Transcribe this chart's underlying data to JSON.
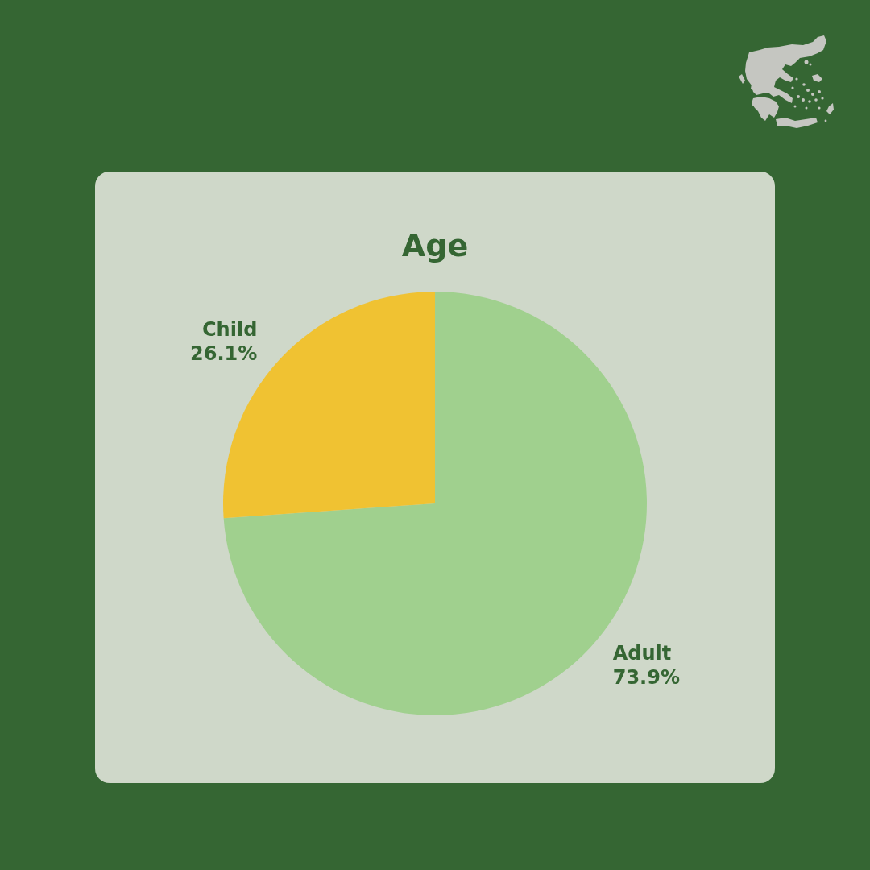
{
  "chart_data": {
    "type": "pie",
    "title": "Age",
    "categories": [
      "Adult",
      "Child"
    ],
    "values": [
      73.9,
      26.1
    ],
    "colors": [
      "#a0d08e",
      "#f0c232"
    ],
    "value_labels": [
      "73.9%",
      "26.1%"
    ],
    "legend": false
  }
}
